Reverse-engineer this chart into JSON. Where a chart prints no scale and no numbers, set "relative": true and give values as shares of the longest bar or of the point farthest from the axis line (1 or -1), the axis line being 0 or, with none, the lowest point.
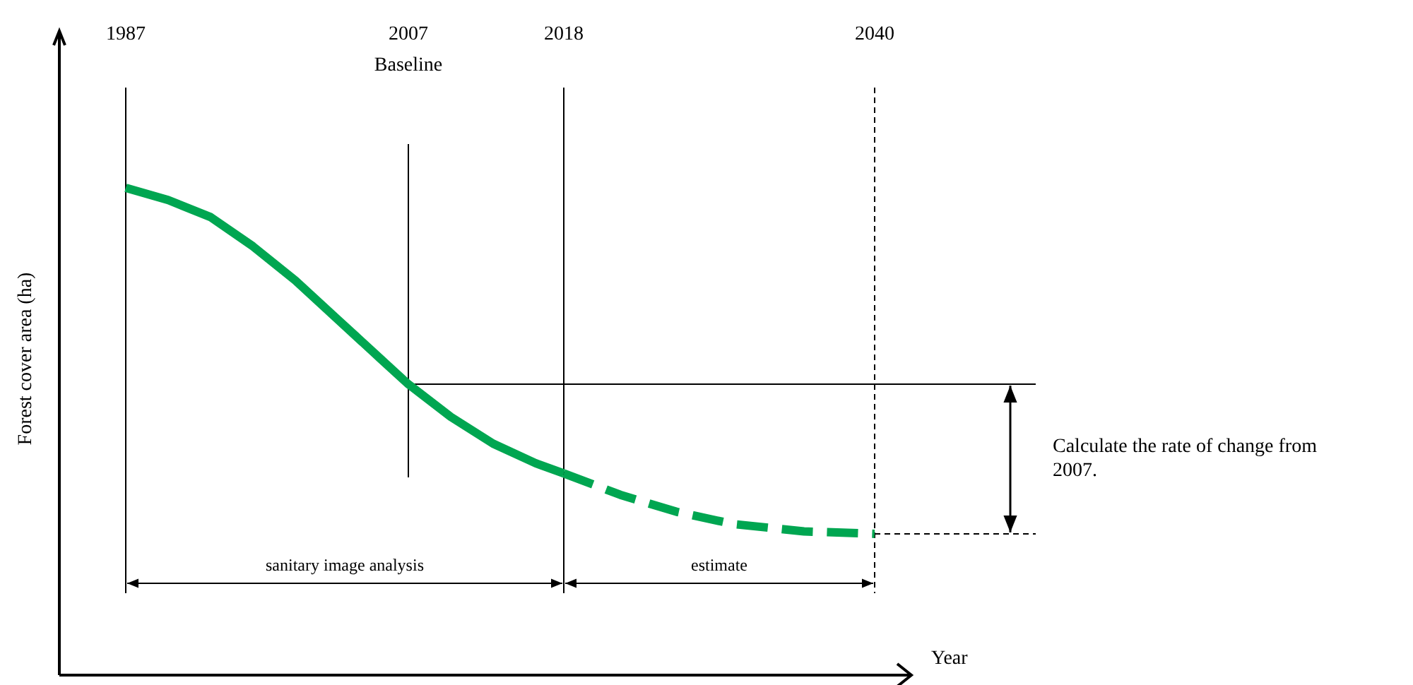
{
  "chart_data": {
    "type": "line",
    "relative": true,
    "xlabel": "Year",
    "ylabel": "Forest cover area (ha)",
    "xlim": [
      1982.3,
      2042.6
    ],
    "xticks": [
      1987,
      2007,
      2018,
      2040
    ],
    "series": [
      {
        "color": "#00a651",
        "line_style": "solid",
        "x": [
          1987,
          1990,
          1993,
          1996,
          1999,
          2002,
          2005,
          2007,
          2010,
          2013,
          2016,
          2018
        ],
        "values": [
          1,
          0.975,
          0.94,
          0.88,
          0.81,
          0.73,
          0.65,
          0.597,
          0.53,
          0.475,
          0.435,
          0.414
        ]
      },
      {
        "color": "#00a651",
        "line_style": "dashed",
        "x": [
          2018,
          2022,
          2026,
          2030,
          2035,
          2040
        ],
        "values": [
          0.414,
          0.37,
          0.335,
          0.31,
          0.295,
          0.29
        ]
      }
    ],
    "ref_lines": [
      {
        "axis": "x",
        "value": 1987,
        "line_style": "solid"
      },
      {
        "axis": "x",
        "value": 2007,
        "label": "Baseline",
        "line_style": "solid"
      },
      {
        "axis": "x",
        "value": 2018,
        "line_style": "solid"
      },
      {
        "axis": "x",
        "value": 2040,
        "line_style": "dashed"
      },
      {
        "axis": "y",
        "value": 0.597,
        "line_style": "solid"
      }
    ],
    "annotations": [
      "sanitary image analysis",
      "estimate",
      "Calculate the rate of change from 2007."
    ]
  }
}
